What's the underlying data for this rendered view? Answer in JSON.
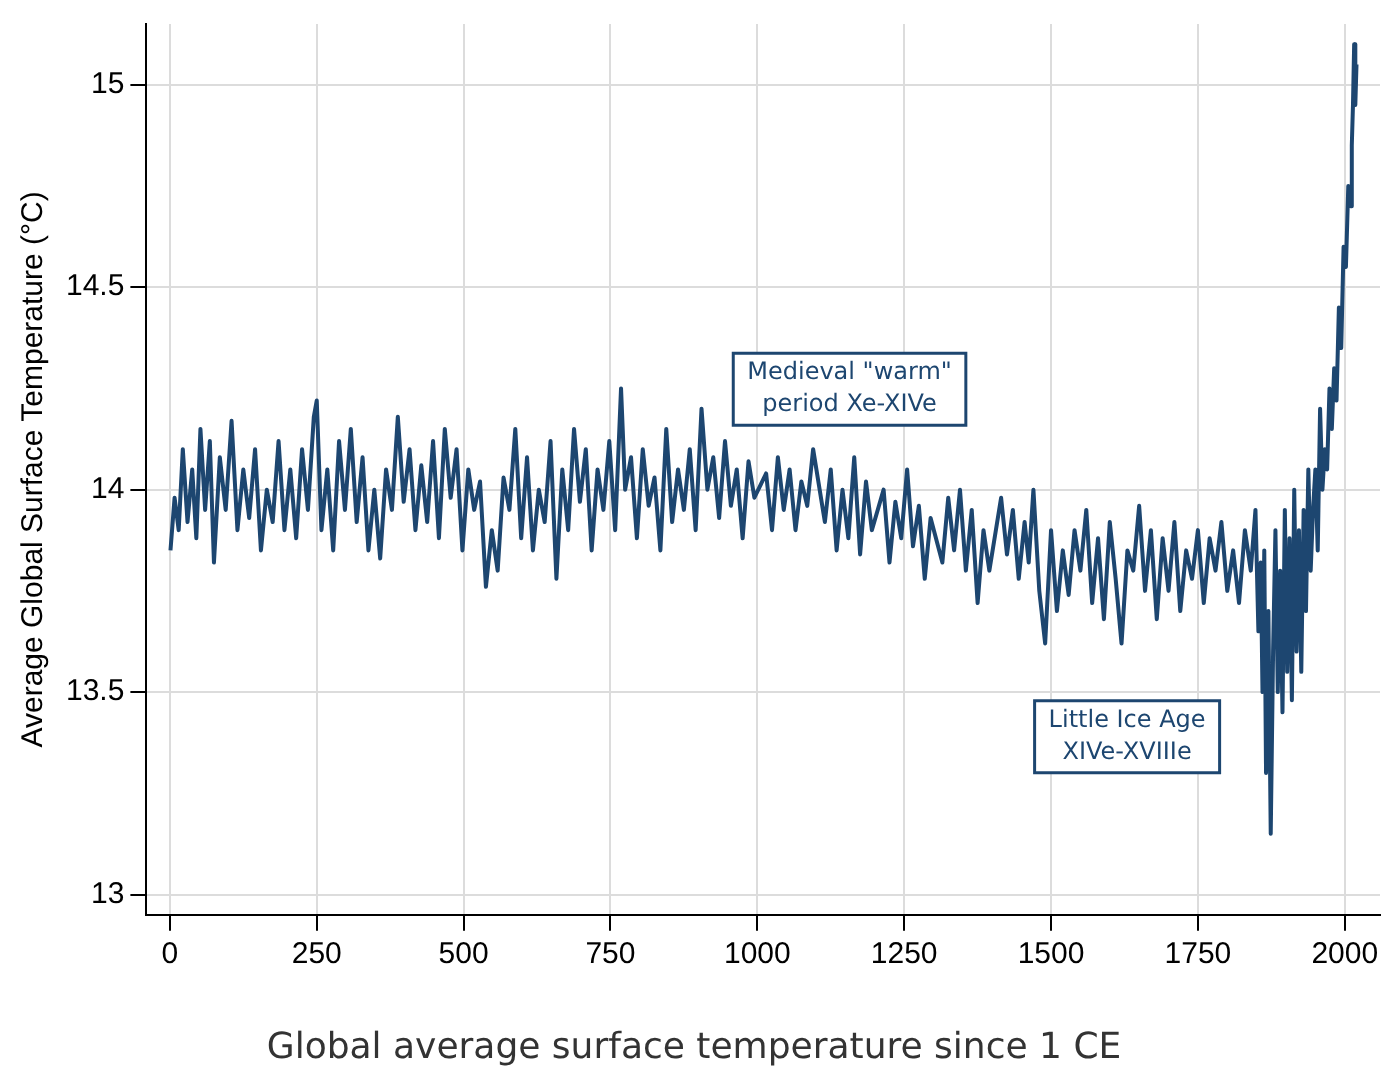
{
  "chart_data": {
    "type": "line",
    "title": "Global average surface temperature since 1 CE",
    "ylabel": "Average Global Surface Temperature (°C)",
    "x": [
      1,
      8,
      15,
      22,
      30,
      38,
      45,
      52,
      60,
      68,
      75,
      85,
      95,
      105,
      115,
      125,
      135,
      145,
      155,
      165,
      175,
      185,
      195,
      205,
      215,
      225,
      235,
      245,
      250,
      258,
      268,
      278,
      288,
      298,
      308,
      318,
      328,
      338,
      348,
      358,
      368,
      378,
      388,
      398,
      408,
      418,
      428,
      438,
      448,
      458,
      468,
      478,
      488,
      498,
      508,
      518,
      528,
      538,
      548,
      558,
      568,
      578,
      588,
      598,
      608,
      618,
      628,
      638,
      648,
      658,
      668,
      678,
      688,
      698,
      708,
      718,
      728,
      738,
      748,
      758,
      768,
      775,
      785,
      795,
      805,
      815,
      825,
      835,
      845,
      855,
      865,
      875,
      885,
      895,
      905,
      915,
      925,
      935,
      945,
      955,
      965,
      975,
      985,
      995,
      1015,
      1025,
      1035,
      1045,
      1055,
      1065,
      1075,
      1085,
      1095,
      1115,
      1125,
      1135,
      1145,
      1155,
      1165,
      1175,
      1185,
      1195,
      1215,
      1225,
      1235,
      1245,
      1255,
      1265,
      1275,
      1285,
      1295,
      1315,
      1325,
      1335,
      1345,
      1355,
      1365,
      1375,
      1385,
      1395,
      1415,
      1425,
      1435,
      1445,
      1455,
      1462,
      1470,
      1480,
      1490,
      1500,
      1510,
      1520,
      1530,
      1540,
      1550,
      1560,
      1570,
      1580,
      1590,
      1600,
      1610,
      1620,
      1630,
      1640,
      1650,
      1660,
      1670,
      1680,
      1690,
      1700,
      1710,
      1720,
      1730,
      1740,
      1750,
      1760,
      1770,
      1780,
      1790,
      1800,
      1810,
      1820,
      1830,
      1840,
      1848,
      1853,
      1857,
      1860,
      1863,
      1866,
      1870,
      1874,
      1878,
      1882,
      1886,
      1890,
      1894,
      1898,
      1902,
      1906,
      1910,
      1914,
      1918,
      1922,
      1926,
      1930,
      1934,
      1938,
      1942,
      1946,
      1950,
      1954,
      1958,
      1962,
      1966,
      1970,
      1974,
      1978,
      1982,
      1986,
      1990,
      1994,
      1998,
      2002,
      2006,
      2010,
      2012,
      2014,
      2016,
      2018,
      2020
    ],
    "values": [
      13.85,
      13.98,
      13.9,
      14.1,
      13.92,
      14.05,
      13.88,
      14.15,
      13.95,
      14.12,
      13.82,
      14.08,
      13.95,
      14.17,
      13.9,
      14.05,
      13.93,
      14.1,
      13.85,
      14.0,
      13.92,
      14.12,
      13.9,
      14.05,
      13.88,
      14.1,
      13.95,
      14.18,
      14.22,
      13.9,
      14.05,
      13.85,
      14.12,
      13.95,
      14.15,
      13.92,
      14.08,
      13.85,
      14.0,
      13.83,
      14.05,
      13.95,
      14.18,
      13.97,
      14.1,
      13.9,
      14.06,
      13.92,
      14.12,
      13.88,
      14.15,
      13.98,
      14.1,
      13.85,
      14.05,
      13.95,
      14.02,
      13.76,
      13.9,
      13.8,
      14.03,
      13.95,
      14.15,
      13.88,
      14.08,
      13.85,
      14.0,
      13.92,
      14.12,
      13.78,
      14.05,
      13.9,
      14.15,
      13.97,
      14.1,
      13.85,
      14.05,
      13.95,
      14.12,
      13.9,
      14.25,
      14.0,
      14.08,
      13.88,
      14.1,
      13.96,
      14.03,
      13.85,
      14.15,
      13.92,
      14.05,
      13.95,
      14.1,
      13.9,
      14.2,
      14.0,
      14.08,
      13.93,
      14.12,
      13.96,
      14.05,
      13.88,
      14.07,
      13.98,
      14.04,
      13.9,
      14.08,
      13.95,
      14.05,
      13.9,
      14.02,
      13.96,
      14.1,
      13.92,
      14.05,
      13.85,
      14.0,
      13.88,
      14.08,
      13.84,
      14.02,
      13.9,
      14.0,
      13.82,
      13.97,
      13.88,
      14.05,
      13.86,
      13.96,
      13.78,
      13.93,
      13.82,
      13.98,
      13.85,
      14.0,
      13.8,
      13.95,
      13.72,
      13.9,
      13.8,
      13.98,
      13.84,
      13.95,
      13.78,
      13.92,
      13.82,
      14.0,
      13.75,
      13.62,
      13.9,
      13.7,
      13.85,
      13.74,
      13.9,
      13.8,
      13.95,
      13.72,
      13.88,
      13.68,
      13.92,
      13.78,
      13.62,
      13.85,
      13.8,
      13.96,
      13.75,
      13.9,
      13.68,
      13.88,
      13.75,
      13.92,
      13.7,
      13.85,
      13.78,
      13.9,
      13.72,
      13.88,
      13.8,
      13.92,
      13.75,
      13.85,
      13.72,
      13.9,
      13.8,
      13.95,
      13.65,
      13.82,
      13.5,
      13.85,
      13.3,
      13.7,
      13.15,
      13.6,
      13.9,
      13.5,
      13.8,
      13.45,
      13.95,
      13.55,
      13.88,
      13.48,
      14.0,
      13.6,
      13.9,
      13.55,
      13.95,
      13.7,
      14.05,
      13.8,
      13.95,
      14.05,
      13.85,
      14.2,
      14.0,
      14.1,
      14.05,
      14.25,
      14.15,
      14.3,
      14.22,
      14.45,
      14.35,
      14.6,
      14.55,
      14.75,
      14.7,
      14.85,
      14.95,
      15.1,
      14.95,
      15.05
    ],
    "color": "#1d4670",
    "xlim": [
      -40,
      2060
    ],
    "ylim": [
      12.95,
      15.15
    ],
    "xticks": [
      0,
      250,
      500,
      750,
      1000,
      1250,
      1500,
      1750,
      2000
    ],
    "yticks": [
      13,
      13.5,
      14,
      14.5,
      15
    ],
    "grid": true,
    "legend": false,
    "marker": "none",
    "line_style": "solid",
    "annotations": [
      "Medieval \"warm\" period Xe-XIVe",
      "Little Ice Age XIVe-XVIIIe"
    ]
  }
}
